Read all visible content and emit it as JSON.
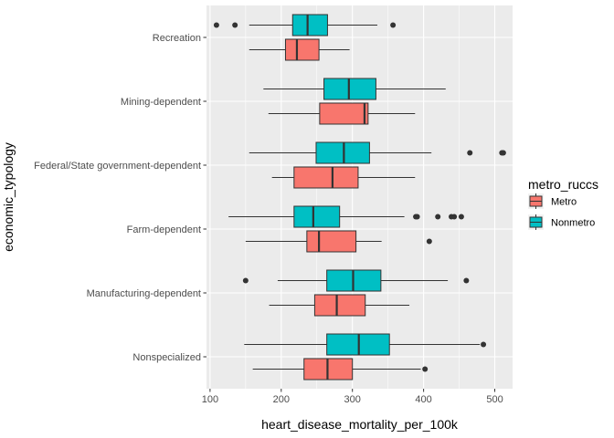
{
  "chart_data": {
    "type": "boxplot",
    "orientation": "horizontal",
    "xlabel": "heart_disease_mortality_per_100k",
    "ylabel": "economic_typology",
    "xlim": [
      95,
      525
    ],
    "xticks": [
      100,
      200,
      300,
      400,
      500
    ],
    "grid": true,
    "categories": [
      "Recreation",
      "Mining-dependent",
      "Federal/State government-dependent",
      "Farm-dependent",
      "Manufacturing-dependent",
      "Nonspecialized"
    ],
    "legend": {
      "title": "metro_ruccs",
      "position": "right",
      "entries": [
        {
          "label": "Metro",
          "color": "#F8766D"
        },
        {
          "label": "Nonmetro",
          "color": "#00BFC4"
        }
      ]
    },
    "series": [
      {
        "name": "Metro",
        "color": "#F8766D",
        "boxes": [
          {
            "category": "Recreation",
            "whisker_low": 155,
            "q1": 206,
            "median": 222,
            "q3": 253,
            "whisker_high": 296,
            "outliers": []
          },
          {
            "category": "Mining-dependent",
            "whisker_low": 182,
            "q1": 254,
            "median": 317,
            "q3": 322,
            "whisker_high": 388,
            "outliers": []
          },
          {
            "category": "Federal/State government-dependent",
            "whisker_low": 187,
            "q1": 218,
            "median": 272,
            "q3": 308,
            "whisker_high": 388,
            "outliers": []
          },
          {
            "category": "Farm-dependent",
            "whisker_low": 150,
            "q1": 236,
            "median": 253,
            "q3": 305,
            "whisker_high": 341,
            "outliers": [
              408
            ]
          },
          {
            "category": "Manufacturing-dependent",
            "whisker_low": 183,
            "q1": 247,
            "median": 278,
            "q3": 318,
            "whisker_high": 380,
            "outliers": []
          },
          {
            "category": "Nonspecialized",
            "whisker_low": 160,
            "q1": 232,
            "median": 265,
            "q3": 300,
            "whisker_high": 396,
            "outliers": [
              402
            ]
          }
        ]
      },
      {
        "name": "Nonmetro",
        "color": "#00BFC4",
        "boxes": [
          {
            "category": "Recreation",
            "whisker_low": 155,
            "q1": 216,
            "median": 237,
            "q3": 265,
            "whisker_high": 335,
            "outliers": [
              109,
              135,
              357
            ]
          },
          {
            "category": "Mining-dependent",
            "whisker_low": 175,
            "q1": 260,
            "median": 295,
            "q3": 333,
            "whisker_high": 431,
            "outliers": []
          },
          {
            "category": "Federal/State government-dependent",
            "whisker_low": 155,
            "q1": 249,
            "median": 288,
            "q3": 324,
            "whisker_high": 411,
            "outliers": [
              465,
              510,
              512
            ]
          },
          {
            "category": "Farm-dependent",
            "whisker_low": 126,
            "q1": 218,
            "median": 245,
            "q3": 282,
            "whisker_high": 373,
            "outliers": [
              389,
              391,
              420,
              439,
              443,
              453
            ]
          },
          {
            "category": "Manufacturing-dependent",
            "whisker_low": 195,
            "q1": 264,
            "median": 301,
            "q3": 340,
            "whisker_high": 434,
            "outliers": [
              150,
              460
            ]
          },
          {
            "category": "Nonspecialized",
            "whisker_low": 148,
            "q1": 264,
            "median": 309,
            "q3": 352,
            "whisker_high": 479,
            "outliers": [
              484
            ]
          }
        ]
      }
    ]
  }
}
